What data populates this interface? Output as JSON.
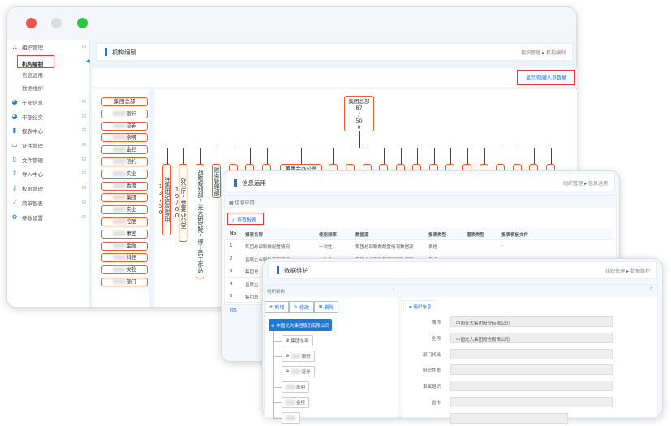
{
  "colors": {
    "accent": "#1e78d8",
    "org_border": "#f05a28",
    "highlight": "#e53935"
  },
  "window_controls": [
    "close",
    "minimize",
    "maximize"
  ],
  "sidebar": {
    "items": [
      {
        "label": "组织管理",
        "icon": "org-icon",
        "sub": [
          "机构编制",
          "信息运用",
          "数据维护"
        ],
        "active_sub": "机构编制"
      },
      {
        "label": "干部信息",
        "icon": "globe-icon"
      },
      {
        "label": "干部纪实",
        "icon": "globe-icon"
      },
      {
        "label": "报表中心",
        "icon": "bar-chart-icon"
      },
      {
        "label": "证件管理",
        "icon": "card-icon"
      },
      {
        "label": "文件管理",
        "icon": "file-icon"
      },
      {
        "label": "导入中心",
        "icon": "upload-icon"
      },
      {
        "label": "权限管理",
        "icon": "key-icon"
      },
      {
        "label": "简单智表",
        "icon": "wand-icon"
      },
      {
        "label": "参数设置",
        "icon": "gears-icon"
      }
    ]
  },
  "main": {
    "title": "机构编制",
    "breadcrumb": [
      "组织管理",
      "机构编制"
    ],
    "toggle_button": "显示/隐藏人员数量",
    "org_list": [
      "集团总部",
      "银行",
      "证券",
      "永明",
      "金控",
      "信托",
      "实业",
      "香港",
      "集团",
      "实业",
      "控股",
      "事室",
      "金融",
      "科技",
      "文投",
      "部门"
    ],
    "root": {
      "name": "集团总部",
      "line1": "87",
      "line2": "/",
      "line3": "50",
      "line4": "0"
    },
    "children": [
      "驻集团纪检监察组13/50",
      "办公厅/党委办公室19/80",
      "战略规划部/光大研究院/博士后工作站",
      "财务管理部",
      "人",
      "投",
      "协",
      "董事会办公室",
      "风",
      "审",
      "党",
      "企",
      "巡",
      "总",
      "金",
      "博",
      "扶",
      "生",
      "文",
      "科",
      "审",
      "部"
    ]
  },
  "info": {
    "title": "信息运用",
    "breadcrumb": [
      "组织管理",
      "信息运用"
    ],
    "section": "信息应用",
    "view_button": "查看报表",
    "columns": [
      "No",
      "报表名称",
      "使用频率",
      "数据源",
      "报表类型",
      "图表类型",
      "报表模板文件"
    ],
    "rows": [
      [
        "1",
        "集团总部职数配置情况",
        "一次性",
        "集团总部职数配置情况数据源",
        "表格",
        "",
        "-"
      ],
      [
        "2",
        "直属企业职数配置情况",
        "一次性",
        "直属企业职数配置情况数据源",
        "表格",
        "",
        ""
      ],
      [
        "3",
        "集团总",
        "",
        "",
        "",
        "",
        ""
      ],
      [
        "4",
        "直属企",
        "",
        "",
        "",
        "",
        ""
      ],
      [
        "5",
        "集团总",
        "",
        "",
        "",
        "",
        ""
      ]
    ],
    "footer": "共5"
  },
  "maint": {
    "title": "数据维护",
    "breadcrumb": [
      "组织管理",
      "数据维护"
    ],
    "tree_title": "组织架构",
    "buttons": [
      "新增",
      "修改",
      "删除"
    ],
    "root": "中国光大集团股份有限公司",
    "nodes": [
      "集团总部",
      "银行",
      "证券",
      "永明",
      "金控",
      ""
    ],
    "tab": "组织信息",
    "fields": [
      {
        "label": "简称",
        "value": "中国光大集团股份有限公司"
      },
      {
        "label": "全称",
        "value": "中国光大集团股份有限公司"
      },
      {
        "label": "部门代码",
        "value": ""
      },
      {
        "label": "组织性质",
        "value": ""
      },
      {
        "label": "隶属组织",
        "value": ""
      },
      {
        "label": "省市",
        "value": ""
      },
      {
        "label": "",
        "value": ""
      }
    ]
  }
}
